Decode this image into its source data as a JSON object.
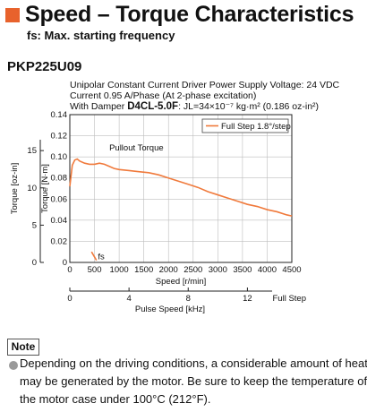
{
  "header": {
    "title": "Speed – Torque Characteristics",
    "subtitle": "fs: Max. starting frequency",
    "accent_color": "#e8622c"
  },
  "model": "PKP225U09",
  "conditions": {
    "line1": "Unipolar Constant Current Driver  Power Supply Voltage: 24 VDC",
    "line2": "Current 0.95 A/Phase (At 2-phase excitation)",
    "line3_prefix": "With Damper ",
    "line3_damper": "D4CL-5.0F",
    "line3_suffix": ": JL=34×10⁻⁷ kg·m² (0.186 oz-in²)"
  },
  "chart_data": {
    "type": "line",
    "xlabel": "Speed [r/min]",
    "ylabel": "Torque [N·m]",
    "ylabel_secondary": "Torque [oz-in]",
    "xlim": [
      0,
      4500
    ],
    "ylim": [
      0,
      0.14
    ],
    "x_ticks": [
      "0",
      "500",
      "1000",
      "1500",
      "2000",
      "2500",
      "3000",
      "3500",
      "4000",
      "4500"
    ],
    "y_ticks": [
      "0",
      "0.02",
      "0.04",
      "0.06",
      "0.08",
      "0.10",
      "0.12",
      "0.14"
    ],
    "y2_ticks": [
      "0",
      "5",
      "10",
      "15"
    ],
    "y2_tick_values": [
      0,
      5,
      10,
      15
    ],
    "y2_per_y": 141.6,
    "secondary_xlabel": "Pulse Speed [kHz]",
    "secondary_x_ticks": [
      "0",
      "4",
      "8",
      "12"
    ],
    "secondary_x_tick_values": [
      0,
      4,
      8,
      12
    ],
    "secondary_x_end_label": "Full Step",
    "khz_to_rpm": 300,
    "grid": true,
    "legend_position": "top-right",
    "series_color": "#f07a3c",
    "series": [
      {
        "name": "Full Step 1.8°/step",
        "x": [
          0,
          50,
          100,
          150,
          200,
          300,
          400,
          500,
          600,
          700,
          800,
          900,
          1000,
          1200,
          1400,
          1600,
          1800,
          2000,
          2200,
          2400,
          2600,
          2800,
          3000,
          3200,
          3400,
          3600,
          3800,
          4000,
          4200,
          4400,
          4500
        ],
        "y": [
          0.072,
          0.092,
          0.097,
          0.098,
          0.096,
          0.094,
          0.093,
          0.093,
          0.094,
          0.093,
          0.091,
          0.089,
          0.088,
          0.087,
          0.086,
          0.085,
          0.083,
          0.08,
          0.077,
          0.074,
          0.071,
          0.067,
          0.064,
          0.061,
          0.058,
          0.055,
          0.053,
          0.05,
          0.048,
          0.045,
          0.044
        ]
      }
    ],
    "annotations": [
      {
        "text": "Pullout Torque",
        "x": 800,
        "y": 0.106
      },
      {
        "text": "fs",
        "x": 570,
        "y": 0.003,
        "marker_x": [
          440,
          540
        ],
        "marker_y": [
          0.01,
          0.002
        ]
      }
    ]
  },
  "note": {
    "label": "Note",
    "line1": "Depending on the driving conditions, a considerable amount of heat",
    "line2": "may be generated by the motor. Be sure to keep the temperature of",
    "line3": "the motor case under 100°C (212°F)."
  }
}
